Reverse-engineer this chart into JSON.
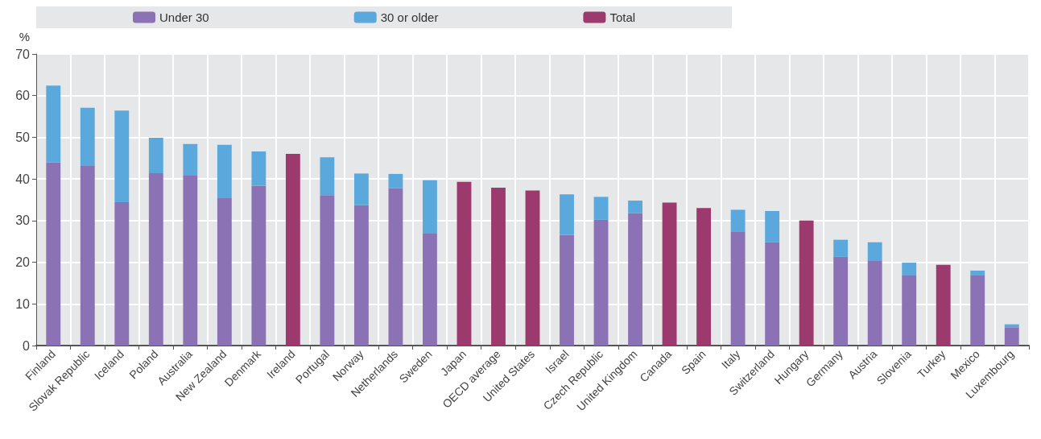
{
  "chart_data": {
    "type": "bar",
    "ylabel": "%",
    "stacked": true,
    "grid": true,
    "legend": "top",
    "categories": [
      "Finland",
      "Slovak Republic",
      "Iceland",
      "Poland",
      "Australia",
      "New Zealand",
      "Denmark",
      "Ireland",
      "Portugal",
      "Norway",
      "Netherlands",
      "Sweden",
      "Japan",
      "OECD average",
      "United States",
      "Israel",
      "Czech Republic",
      "United Kingdom",
      "Canada",
      "Spain",
      "Italy",
      "Switzerland",
      "Hungary",
      "Germany",
      "Austria",
      "Slovenia",
      "Turkey",
      "Mexico",
      "Luxembourg"
    ],
    "series": [
      {
        "name": "Under 30",
        "color": "#8b72b5",
        "values": [
          44.0,
          43.1,
          34.4,
          41.4,
          40.8,
          35.4,
          38.4,
          null,
          36.1,
          33.7,
          37.8,
          26.9,
          null,
          null,
          null,
          26.6,
          30.2,
          31.8,
          null,
          null,
          27.4,
          24.8,
          null,
          21.3,
          20.3,
          16.8,
          null,
          16.8,
          4.4
        ]
      },
      {
        "name": "30 or older",
        "color": "#5ba8dc",
        "values": [
          18.4,
          14.0,
          22.0,
          8.5,
          7.6,
          12.8,
          8.2,
          null,
          9.1,
          7.6,
          3.4,
          12.8,
          null,
          null,
          null,
          9.7,
          5.5,
          3.0,
          null,
          null,
          5.2,
          7.5,
          null,
          4.1,
          4.5,
          3.1,
          null,
          1.2,
          0.7
        ]
      },
      {
        "name": "Total",
        "color": "#9c3a6e",
        "values": [
          null,
          null,
          null,
          null,
          null,
          null,
          null,
          46.0,
          null,
          null,
          null,
          null,
          39.3,
          37.9,
          37.2,
          null,
          null,
          null,
          34.3,
          33.0,
          null,
          null,
          30.0,
          null,
          null,
          null,
          19.4,
          null,
          null
        ]
      }
    ],
    "ylim": [
      0,
      70
    ],
    "yticks": [
      0,
      10,
      20,
      30,
      40,
      50,
      60,
      70
    ]
  }
}
